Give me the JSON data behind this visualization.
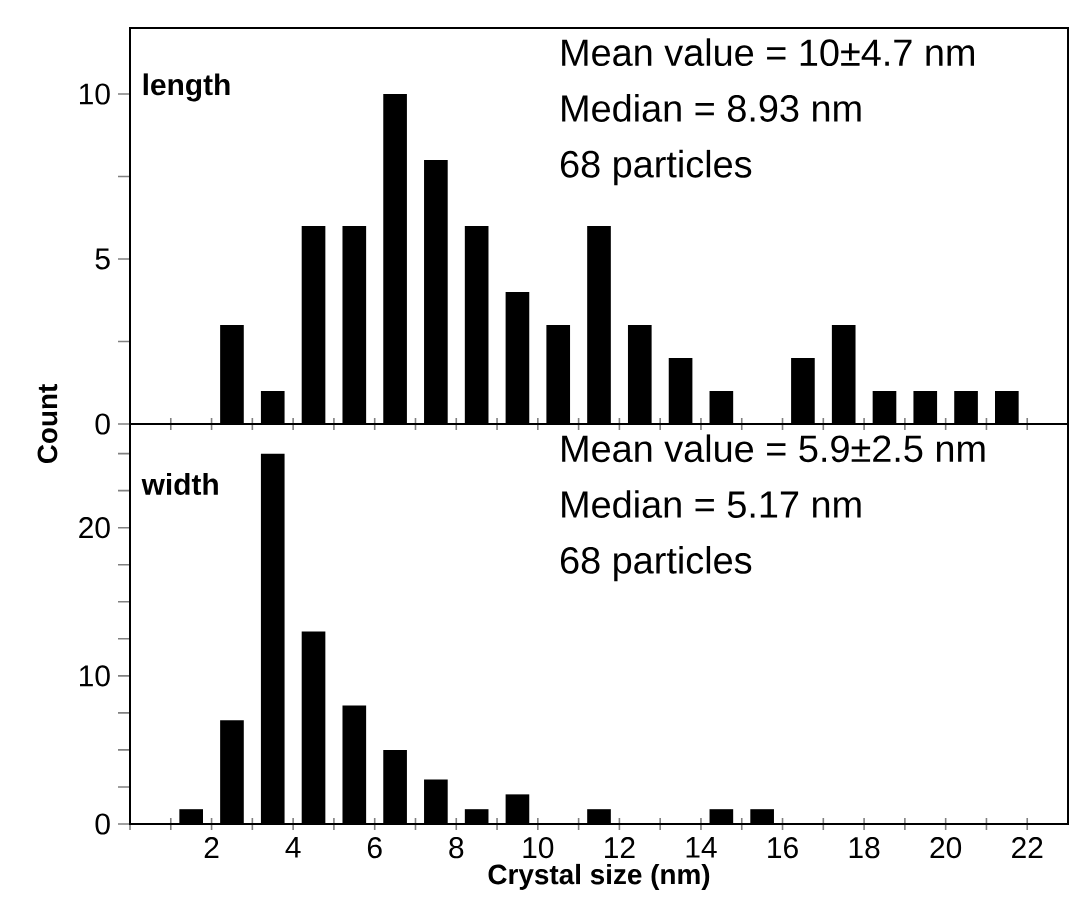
{
  "chart_data": [
    {
      "type": "histogram",
      "color": "#000000",
      "bins": [
        2,
        3,
        4,
        5,
        6,
        7,
        8,
        9,
        10,
        11,
        12,
        13,
        14,
        15,
        16,
        17,
        18,
        19,
        20,
        21,
        22
      ],
      "values": [
        3,
        1,
        6,
        6,
        10,
        8,
        6,
        4,
        3,
        6,
        3,
        2,
        1,
        0,
        2,
        3,
        1,
        1,
        1,
        1
      ],
      "xlim": [
        0,
        23
      ],
      "ylim": [
        0,
        12
      ],
      "xticks": [
        {
          "value": 0,
          "label": null
        },
        {
          "value": 1,
          "label": null
        },
        {
          "value": 2,
          "label": null
        },
        {
          "value": 3,
          "label": null
        },
        {
          "value": 4,
          "label": null
        },
        {
          "value": 5,
          "label": null
        },
        {
          "value": 6,
          "label": null
        },
        {
          "value": 7,
          "label": null
        },
        {
          "value": 8,
          "label": null
        },
        {
          "value": 9,
          "label": null
        },
        {
          "value": 10,
          "label": null
        },
        {
          "value": 11,
          "label": null
        },
        {
          "value": 12,
          "label": null
        },
        {
          "value": 13,
          "label": null
        },
        {
          "value": 14,
          "label": null
        },
        {
          "value": 15,
          "label": null
        },
        {
          "value": 16,
          "label": null
        },
        {
          "value": 17,
          "label": null
        },
        {
          "value": 18,
          "label": null
        },
        {
          "value": 19,
          "label": null
        },
        {
          "value": 20,
          "label": null
        },
        {
          "value": 21,
          "label": null
        },
        {
          "value": 22,
          "label": null
        }
      ],
      "yticks": [
        0,
        {
          "value": 2.5,
          "label": null
        },
        5,
        {
          "value": 7.5,
          "label": null
        },
        10
      ],
      "tick_labels": "y",
      "annotations": [
        "length",
        "Mean value = 10±4.7 nm",
        "Median = 8.93 nm",
        "68 particles"
      ]
    },
    {
      "type": "histogram",
      "color": "#000000",
      "bins": [
        1,
        2,
        3,
        4,
        5,
        6,
        7,
        8,
        9,
        10,
        11,
        12,
        13,
        14,
        15,
        16
      ],
      "values": [
        1,
        7,
        25,
        13,
        8,
        5,
        3,
        1,
        2,
        0,
        1,
        0,
        0,
        1,
        1
      ],
      "xlim": [
        0,
        23
      ],
      "ylim": [
        0,
        27
      ],
      "xticks": [
        {
          "value": 0,
          "label": null
        },
        {
          "value": 1,
          "label": null
        },
        2,
        {
          "value": 3,
          "label": null
        },
        4,
        {
          "value": 5,
          "label": null
        },
        6,
        {
          "value": 7,
          "label": null
        },
        8,
        {
          "value": 9,
          "label": null
        },
        10,
        {
          "value": 11,
          "label": null
        },
        12,
        {
          "value": 13,
          "label": null
        },
        14,
        {
          "value": 15,
          "label": null
        },
        16,
        {
          "value": 17,
          "label": null
        },
        18,
        {
          "value": 19,
          "label": null
        },
        20,
        {
          "value": 21,
          "label": null
        },
        22
      ],
      "yticks": [
        0,
        {
          "value": 2.5,
          "label": null
        },
        {
          "value": 5,
          "label": null
        },
        {
          "value": 7.5,
          "label": null
        },
        10,
        {
          "value": 12.5,
          "label": null
        },
        {
          "value": 15,
          "label": null
        },
        {
          "value": 17.5,
          "label": null
        },
        20,
        {
          "value": 22.5,
          "label": null
        },
        {
          "value": 25,
          "label": null
        }
      ],
      "xlabel": "Crystal size (nm)",
      "ylabel": "Count",
      "annotations": [
        "width",
        "Mean value = 5.9±2.5 nm",
        "Median = 5.17 nm",
        "68 particles"
      ]
    }
  ]
}
